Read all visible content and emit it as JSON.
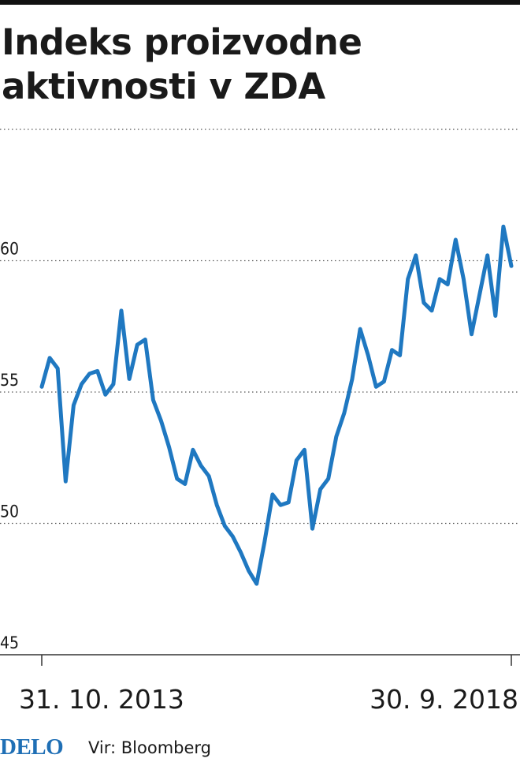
{
  "title": "Indeks proizvodne aktivnosti v ZDA",
  "chart_data": {
    "type": "line",
    "series": [
      {
        "color": "#1f78c1",
        "x_start": "31. 10. 2013",
        "x_end": "30. 9. 2018",
        "values": [
          55.2,
          56.3,
          55.9,
          51.6,
          54.5,
          55.3,
          55.7,
          55.8,
          54.9,
          55.3,
          58.1,
          55.5,
          56.8,
          57.0,
          54.7,
          53.9,
          52.9,
          51.7,
          51.5,
          52.8,
          52.2,
          51.8,
          50.7,
          49.9,
          49.5,
          48.9,
          48.2,
          47.7,
          49.3,
          51.1,
          50.7,
          50.8,
          52.4,
          52.8,
          49.8,
          51.3,
          51.7,
          53.3,
          54.2,
          55.5,
          57.4,
          56.4,
          55.2,
          55.4,
          56.6,
          56.4,
          59.3,
          60.2,
          58.4,
          58.1,
          59.3,
          59.1,
          60.8,
          59.3,
          57.2,
          58.7,
          60.2,
          57.9,
          61.3,
          59.8
        ]
      }
    ],
    "x_tick_labels": [
      "31. 10. 2013",
      "30. 9. 2018"
    ],
    "y_ticks": [
      45,
      50,
      55,
      60
    ],
    "ylim": [
      45,
      65
    ],
    "grid": true,
    "legend": "none"
  },
  "footer": {
    "logo": "DELO",
    "source": "Vir: Bloomberg"
  }
}
